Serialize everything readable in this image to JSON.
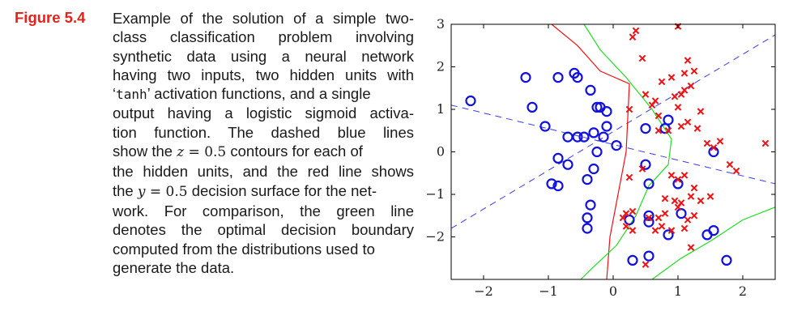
{
  "figure": {
    "label": "Figure 5.4",
    "caption": {
      "l1": "Example of the solution of a simple two-",
      "l2": "class classification problem involving",
      "l3": "synthetic data using a neural network",
      "l4": "having two inputs, two hidden units with",
      "l5a": "‘",
      "l5code": "tanh",
      "l5b": "’ activation functions, and a single",
      "l6": "output having a logistic sigmoid activa-",
      "l7": "tion function.  The dashed blue lines",
      "l8a": "show the ",
      "l8var": "z",
      "l8eq": " = 0.5",
      "l8b": " contours for each of",
      "l9": "the hidden units, and the red line shows",
      "l10a": "the ",
      "l10var": "y",
      "l10eq": " = 0.5",
      "l10b": " decision surface for the net-",
      "l11": "work.  For comparison, the green line",
      "l12": "denotes the optimal decision boundary",
      "l13": "computed from the distributions used to",
      "l14": "generate the data."
    }
  },
  "chart_data": {
    "type": "scatter",
    "title": "",
    "xlabel": "",
    "ylabel": "",
    "xlim": [
      -2.5,
      2.5
    ],
    "ylim": [
      -3,
      3
    ],
    "xticks": [
      -2,
      -1,
      0,
      1,
      2
    ],
    "yticks": [
      -2,
      -1,
      0,
      1,
      2,
      3
    ],
    "xtick_labels": [
      "−2",
      "−1",
      "0",
      "1",
      "2"
    ],
    "ytick_labels": [
      "−2",
      "−1",
      "0",
      "1",
      "2",
      "3"
    ],
    "grid": false,
    "colors": {
      "class_circle": "#1010e0",
      "class_cross": "#ee1111",
      "hidden_contours": "#3a3af0",
      "network_boundary": "#ee1111",
      "optimal_boundary": "#22dd22"
    },
    "series": [
      {
        "marker": "circle",
        "points": [
          [
            -2.2,
            1.2
          ],
          [
            -1.35,
            1.75
          ],
          [
            -0.85,
            1.75
          ],
          [
            -0.6,
            1.85
          ],
          [
            -0.55,
            1.75
          ],
          [
            -1.25,
            1.05
          ],
          [
            -1.05,
            0.6
          ],
          [
            -0.35,
            1.45
          ],
          [
            -0.25,
            1.05
          ],
          [
            -0.2,
            1.05
          ],
          [
            -0.1,
            0.95
          ],
          [
            -0.1,
            0.6
          ],
          [
            0.5,
            0.55
          ],
          [
            0.8,
            0.55
          ],
          [
            0.85,
            0.75
          ],
          [
            -0.7,
            0.35
          ],
          [
            -0.55,
            0.35
          ],
          [
            -0.45,
            0.35
          ],
          [
            -0.3,
            0.45
          ],
          [
            -0.15,
            0.35
          ],
          [
            0.05,
            0.15
          ],
          [
            -0.25,
            0.0
          ],
          [
            -0.85,
            -0.15
          ],
          [
            -0.7,
            -0.3
          ],
          [
            -0.3,
            -0.4
          ],
          [
            -0.4,
            -0.65
          ],
          [
            -0.95,
            -0.75
          ],
          [
            -0.85,
            -0.8
          ],
          [
            -0.35,
            -1.25
          ],
          [
            -0.4,
            -1.55
          ],
          [
            -0.4,
            -1.8
          ],
          [
            0.25,
            -1.6
          ],
          [
            0.55,
            -1.5
          ],
          [
            0.5,
            -0.3
          ],
          [
            0.55,
            -0.75
          ],
          [
            1.0,
            -0.75
          ],
          [
            1.05,
            -1.45
          ],
          [
            0.85,
            -1.95
          ],
          [
            1.45,
            -1.95
          ],
          [
            1.55,
            -1.85
          ],
          [
            1.75,
            -2.55
          ],
          [
            0.55,
            -2.45
          ],
          [
            0.3,
            -2.55
          ],
          [
            1.55,
            0.0
          ],
          [
            0.55,
            -1.65
          ]
        ]
      },
      {
        "marker": "cross",
        "points": [
          [
            0.35,
            2.85
          ],
          [
            0.3,
            2.7
          ],
          [
            1.0,
            2.95
          ],
          [
            0.45,
            2.2
          ],
          [
            1.15,
            2.15
          ],
          [
            1.1,
            1.85
          ],
          [
            1.25,
            1.9
          ],
          [
            0.75,
            1.65
          ],
          [
            0.9,
            1.75
          ],
          [
            1.1,
            1.45
          ],
          [
            1.2,
            1.55
          ],
          [
            0.5,
            1.35
          ],
          [
            0.65,
            1.2
          ],
          [
            0.95,
            1.3
          ],
          [
            1.05,
            1.35
          ],
          [
            0.25,
            1.0
          ],
          [
            0.6,
            1.1
          ],
          [
            0.7,
            0.85
          ],
          [
            1.0,
            1.05
          ],
          [
            1.35,
            0.95
          ],
          [
            0.7,
            0.5
          ],
          [
            0.85,
            0.5
          ],
          [
            1.05,
            0.6
          ],
          [
            1.15,
            0.7
          ],
          [
            1.3,
            0.55
          ],
          [
            1.45,
            0.2
          ],
          [
            1.55,
            0.1
          ],
          [
            1.65,
            0.25
          ],
          [
            1.8,
            -0.3
          ],
          [
            1.9,
            -0.45
          ],
          [
            2.35,
            0.2
          ],
          [
            0.25,
            -0.6
          ],
          [
            0.45,
            -0.4
          ],
          [
            0.9,
            -0.55
          ],
          [
            1.0,
            -0.65
          ],
          [
            1.1,
            -0.55
          ],
          [
            1.25,
            -0.85
          ],
          [
            0.8,
            -1.1
          ],
          [
            0.95,
            -1.15
          ],
          [
            1.05,
            -1.2
          ],
          [
            1.2,
            -1.05
          ],
          [
            1.35,
            -1.15
          ],
          [
            1.5,
            -1.05
          ],
          [
            1.0,
            -1.3
          ],
          [
            1.15,
            -1.6
          ],
          [
            1.25,
            -1.5
          ],
          [
            0.7,
            -1.55
          ],
          [
            0.8,
            -1.45
          ],
          [
            0.55,
            -1.55
          ],
          [
            0.75,
            -1.75
          ],
          [
            0.65,
            -1.85
          ],
          [
            0.2,
            -1.75
          ],
          [
            0.3,
            -1.85
          ],
          [
            0.15,
            -1.55
          ],
          [
            0.3,
            -1.4
          ],
          [
            0.2,
            -1.45
          ],
          [
            1.1,
            -1.8
          ],
          [
            1.2,
            -2.25
          ],
          [
            0.5,
            -2.65
          ],
          [
            0.9,
            -1.85
          ]
        ]
      }
    ],
    "lines": [
      {
        "style": "dashed",
        "points": [
          [
            -2.5,
            -1.8
          ],
          [
            2.5,
            2.75
          ]
        ]
      },
      {
        "style": "dashed",
        "points": [
          [
            -2.5,
            1.1
          ],
          [
            2.5,
            -0.75
          ]
        ]
      },
      {
        "style": "solid",
        "points": [
          [
            -0.95,
            3.0
          ],
          [
            -0.55,
            2.5
          ],
          [
            -0.2,
            1.9
          ],
          [
            0.25,
            1.6
          ],
          [
            0.2,
            0.0
          ],
          [
            -0.05,
            -2.0
          ],
          [
            -0.1,
            -3.0
          ]
        ]
      },
      {
        "style": "solid",
        "points": [
          [
            -0.45,
            3.0
          ],
          [
            -0.2,
            2.4
          ],
          [
            0.2,
            1.75
          ],
          [
            0.6,
            1.0
          ],
          [
            0.9,
            0.3
          ],
          [
            0.85,
            -0.3
          ],
          [
            0.55,
            -0.8
          ],
          [
            0.35,
            -1.5
          ],
          [
            0.05,
            -2.2
          ],
          [
            -0.3,
            -2.7
          ],
          [
            -0.5,
            -3.0
          ]
        ]
      },
      {
        "style": "solid",
        "points": [
          [
            0.6,
            -3.0
          ],
          [
            1.05,
            -2.5
          ],
          [
            1.5,
            -2.1
          ],
          [
            2.0,
            -1.6
          ],
          [
            2.5,
            -1.3
          ]
        ]
      }
    ]
  }
}
